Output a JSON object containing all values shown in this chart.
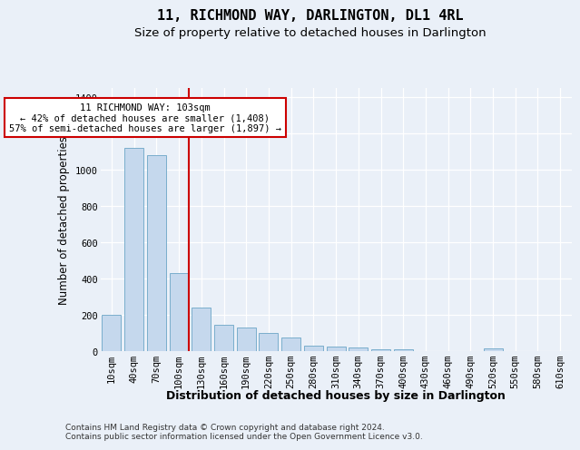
{
  "title": "11, RICHMOND WAY, DARLINGTON, DL1 4RL",
  "subtitle": "Size of property relative to detached houses in Darlington",
  "xlabel": "Distribution of detached houses by size in Darlington",
  "ylabel": "Number of detached properties",
  "categories": [
    "10sqm",
    "40sqm",
    "70sqm",
    "100sqm",
    "130sqm",
    "160sqm",
    "190sqm",
    "220sqm",
    "250sqm",
    "280sqm",
    "310sqm",
    "340sqm",
    "370sqm",
    "400sqm",
    "430sqm",
    "460sqm",
    "490sqm",
    "520sqm",
    "550sqm",
    "580sqm",
    "610sqm"
  ],
  "values": [
    200,
    1120,
    1080,
    430,
    240,
    145,
    130,
    100,
    75,
    30,
    25,
    20,
    10,
    10,
    0,
    0,
    0,
    15,
    0,
    0,
    0
  ],
  "bar_color": "#c5d8ed",
  "bar_edge_color": "#7aaecc",
  "property_line_index": 3,
  "property_line_color": "#cc0000",
  "annotation_text": "11 RICHMOND WAY: 103sqm\n← 42% of detached houses are smaller (1,408)\n57% of semi-detached houses are larger (1,897) →",
  "annotation_box_facecolor": "#ffffff",
  "annotation_box_edgecolor": "#cc0000",
  "ylim": [
    0,
    1450
  ],
  "yticks": [
    0,
    200,
    400,
    600,
    800,
    1000,
    1200,
    1400
  ],
  "footer_line1": "Contains HM Land Registry data © Crown copyright and database right 2024.",
  "footer_line2": "Contains public sector information licensed under the Open Government Licence v3.0.",
  "bg_color": "#eaf0f8",
  "plot_bg_color": "#eaf0f8",
  "title_fontsize": 11,
  "subtitle_fontsize": 9.5,
  "xlabel_fontsize": 9,
  "ylabel_fontsize": 8.5,
  "tick_fontsize": 7.5,
  "footer_fontsize": 6.5,
  "annotation_fontsize": 7.5
}
